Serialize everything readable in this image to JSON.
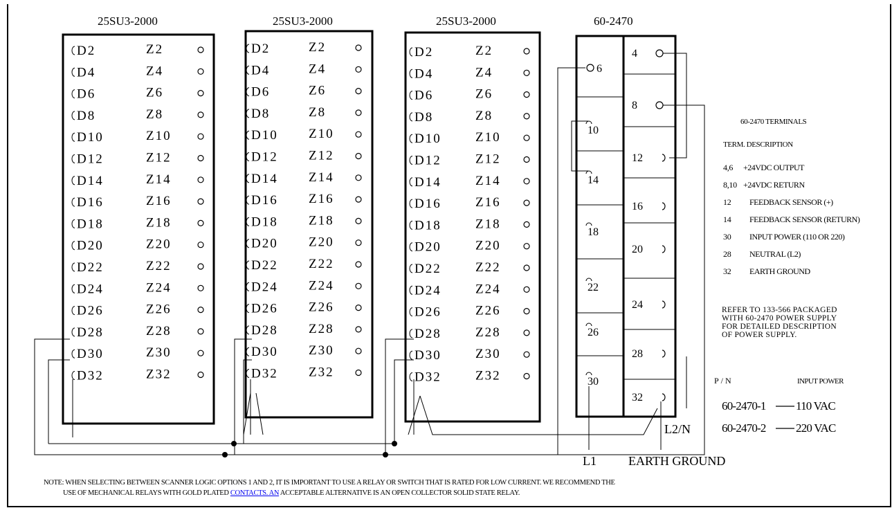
{
  "modules": [
    {
      "label": "25SU3-2000"
    },
    {
      "label": "25SU3-2000"
    },
    {
      "label": "25SU3-2000"
    }
  ],
  "rows": [
    {
      "d": "D2",
      "z": "Z2"
    },
    {
      "d": "D4",
      "z": "Z4"
    },
    {
      "d": "D6",
      "z": "Z6"
    },
    {
      "d": "D8",
      "z": "Z8"
    },
    {
      "d": "D10",
      "z": "Z10"
    },
    {
      "d": "D12",
      "z": "Z12"
    },
    {
      "d": "D14",
      "z": "Z14"
    },
    {
      "d": "D16",
      "z": "Z16"
    },
    {
      "d": "D18",
      "z": "Z18"
    },
    {
      "d": "D20",
      "z": "Z20"
    },
    {
      "d": "D22",
      "z": "Z22"
    },
    {
      "d": "D24",
      "z": "Z24"
    },
    {
      "d": "D26",
      "z": "Z26"
    },
    {
      "d": "D28",
      "z": "Z28"
    },
    {
      "d": "D30",
      "z": "Z30"
    },
    {
      "d": "D32",
      "z": "Z32"
    }
  ],
  "power_supply": {
    "label": "60-2470",
    "left_terminals": [
      "6",
      "10",
      "14",
      "18",
      "22",
      "26",
      "30"
    ],
    "right_terminals": [
      "4",
      "8",
      "12",
      "16",
      "20",
      "24",
      "28",
      "32"
    ]
  },
  "labels": {
    "l1": "L1",
    "l2n": "L2/N",
    "earth_ground": "EARTH GROUND"
  },
  "legend": {
    "title": "60-2470 TERMINALS",
    "header": "TERM. DESCRIPTION",
    "items": [
      {
        "term": "4,6",
        "desc": "+24VDC OUTPUT"
      },
      {
        "term": "8,10",
        "desc": "+24VDC RETURN"
      },
      {
        "term": "12",
        "desc": "FEEDBACK SENSOR (+)"
      },
      {
        "term": "14",
        "desc": "FEEDBACK SENSOR (RETURN)"
      },
      {
        "term": "30",
        "desc": "INPUT POWER (110 OR 220)"
      },
      {
        "term": "28",
        "desc": "NEUTRAL (L2)"
      },
      {
        "term": "32",
        "desc": "EARTH GROUND"
      }
    ],
    "refer": [
      "REFER TO 133-566 PACKAGED",
      "WITH 60-2470 POWER SUPPLY",
      "FOR DETAILED DESCRIPTION",
      "OF POWER SUPPLY."
    ]
  },
  "part_table": {
    "pn_header": "P/N",
    "power_header": "INPUT POWER",
    "rows": [
      {
        "pn": "60-2470-1",
        "power": "110 VAC"
      },
      {
        "pn": "60-2470-2",
        "power": "220 VAC"
      }
    ]
  },
  "note": {
    "line1": "NOTE: WHEN SELECTING BETWEEN SCANNER LOGIC OPTIONS 1 AND 2, IT IS IMPORTANT TO USE A RELAY OR SWITCH THAT IS RATED FOR LOW CURRENT. WE RECOMMEND THE",
    "line2_pre": "USE OF MECHANICAL RELAYS WITH GOLD PLATED ",
    "line2_link": "CONTACTS. AN",
    "line2_post": " ACCEPTABLE ALTERNATIVE IS AN OPEN COLLECTOR SOLID STATE RELAY."
  }
}
